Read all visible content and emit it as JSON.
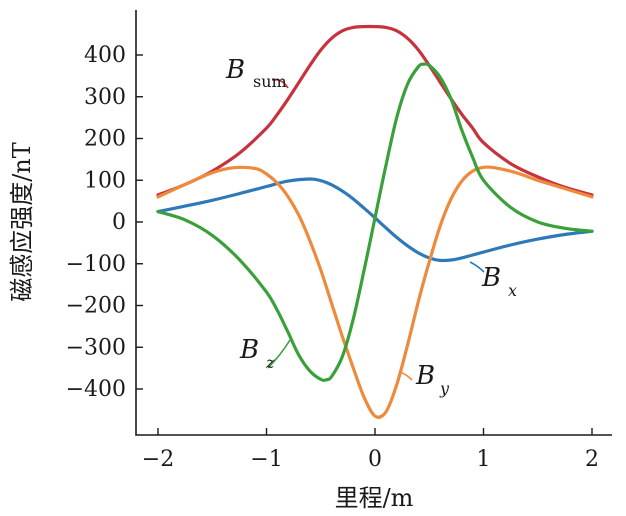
{
  "chart_data": {
    "type": "line",
    "xlabel": "里程/m",
    "ylabel": "磁感应强度/nT",
    "xlim": [
      -2.15,
      2.15
    ],
    "ylim": [
      -520,
      500
    ],
    "xticks": [
      -2,
      -1,
      0,
      1,
      2
    ],
    "xtick_labels": [
      "−2",
      "−1",
      "0",
      "1",
      "2"
    ],
    "yticks": [
      400,
      300,
      200,
      100,
      0,
      -100,
      -200,
      -300,
      -400
    ],
    "ytick_labels": [
      "400",
      "300",
      "200",
      "100",
      "0",
      "−100",
      "−200",
      "−300",
      "−400"
    ],
    "grid": false,
    "legend": "inline labels",
    "series": [
      {
        "key": "bsum",
        "label_main": "B",
        "label_sub": "sum",
        "color": "#c8323c",
        "x": [
          -2.0,
          -1.75,
          -1.5,
          -1.25,
          -1.0,
          -0.9,
          -0.8,
          -0.7,
          -0.6,
          -0.5,
          -0.4,
          -0.3,
          -0.2,
          -0.1,
          0.0,
          0.1,
          0.2,
          0.3,
          0.4,
          0.5,
          0.6,
          0.7,
          0.8,
          0.9,
          1.0,
          1.25,
          1.5,
          1.75,
          2.0
        ],
        "y": [
          65,
          90,
          122,
          165,
          225,
          258,
          295,
          335,
          375,
          412,
          440,
          458,
          466,
          468,
          468,
          466,
          458,
          440,
          412,
          375,
          335,
          295,
          258,
          225,
          190,
          140,
          108,
          83,
          65
        ]
      },
      {
        "key": "bx",
        "label_main": "B",
        "label_sub": "x",
        "color": "#2e7ab8",
        "x": [
          -2.0,
          -1.75,
          -1.5,
          -1.25,
          -1.0,
          -0.8,
          -0.6,
          -0.5,
          -0.4,
          -0.3,
          -0.2,
          -0.1,
          0.0,
          0.1,
          0.2,
          0.3,
          0.4,
          0.5,
          0.6,
          0.7,
          0.8,
          1.0,
          1.25,
          1.5,
          1.75,
          2.0
        ],
        "y": [
          25,
          38,
          52,
          68,
          85,
          98,
          103,
          99,
          89,
          74,
          55,
          33,
          10,
          -14,
          -37,
          -57,
          -74,
          -86,
          -92,
          -91,
          -86,
          -72,
          -55,
          -41,
          -30,
          -22
        ]
      },
      {
        "key": "by",
        "label_main": "B",
        "label_sub": "y",
        "color": "#ee8a3c",
        "x": [
          -2.0,
          -1.75,
          -1.5,
          -1.3,
          -1.1,
          -1.0,
          -0.9,
          -0.8,
          -0.7,
          -0.6,
          -0.5,
          -0.4,
          -0.3,
          -0.2,
          -0.1,
          0.0,
          0.1,
          0.2,
          0.3,
          0.4,
          0.5,
          0.6,
          0.7,
          0.8,
          0.9,
          1.0,
          1.1,
          1.3,
          1.5,
          1.75,
          2.0
        ],
        "y": [
          60,
          90,
          118,
          130,
          128,
          115,
          93,
          60,
          15,
          -45,
          -115,
          -195,
          -275,
          -350,
          -420,
          -465,
          -455,
          -390,
          -295,
          -190,
          -95,
          -10,
          55,
          98,
          122,
          131,
          130,
          118,
          100,
          80,
          60
        ]
      },
      {
        "key": "bz",
        "label_main": "B",
        "label_sub": "z",
        "color": "#3aa03a",
        "x": [
          -2.0,
          -1.75,
          -1.5,
          -1.25,
          -1.0,
          -0.9,
          -0.8,
          -0.7,
          -0.6,
          -0.5,
          -0.45,
          -0.4,
          -0.3,
          -0.2,
          -0.1,
          0.0,
          0.1,
          0.2,
          0.3,
          0.4,
          0.45,
          0.5,
          0.6,
          0.7,
          0.8,
          0.9,
          1.0,
          1.25,
          1.5,
          1.75,
          2.0
        ],
        "y": [
          25,
          5,
          -32,
          -90,
          -168,
          -212,
          -265,
          -320,
          -357,
          -377,
          -378,
          -370,
          -322,
          -232,
          -115,
          10,
          135,
          250,
          330,
          372,
          378,
          375,
          347,
          295,
          220,
          155,
          100,
          35,
          0,
          -15,
          -22
        ]
      }
    ]
  }
}
